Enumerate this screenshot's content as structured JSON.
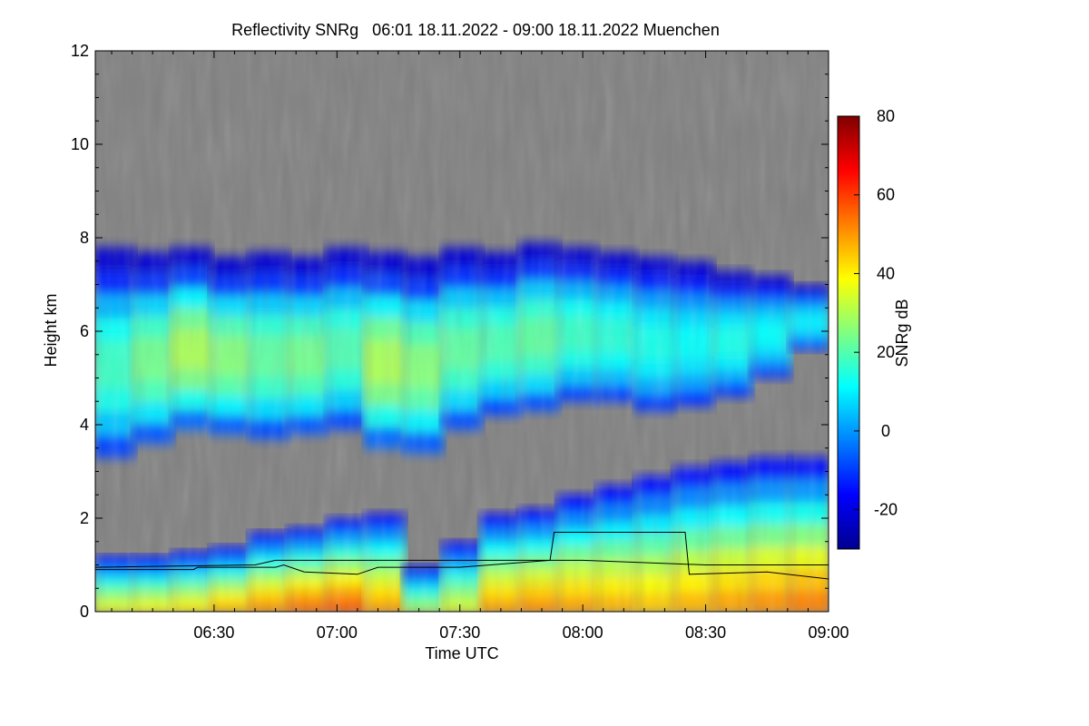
{
  "chart_data": {
    "type": "heatmap",
    "title": "Reflectivity SNRg   06:01 18.11.2022 - 09:00 18.11.2022 Muenchen",
    "xlabel": "Time UTC",
    "ylabel": "Height km",
    "x_range": [
      "06:01",
      "09:00"
    ],
    "x_ticks": [
      "06:30",
      "07:00",
      "07:30",
      "08:00",
      "08:30",
      "09:00"
    ],
    "y_range": [
      0,
      12
    ],
    "y_ticks": [
      "0",
      "2",
      "4",
      "6",
      "8",
      "10",
      "12"
    ],
    "background_color": "#808080",
    "colorbar": {
      "label": "SNRg dB",
      "range": [
        -30,
        80
      ],
      "ticks": [
        "-20",
        "0",
        "20",
        "40",
        "60",
        "80"
      ],
      "colormap": [
        "#00008f",
        "#0000ff",
        "#0080ff",
        "#00ffff",
        "#80ff80",
        "#ffff00",
        "#ff8000",
        "#ff0000",
        "#800000"
      ]
    },
    "upper_layer": {
      "top_km": [
        7.8,
        7.7,
        7.8,
        7.6,
        7.7,
        7.6,
        7.8,
        7.7,
        7.6,
        7.8,
        7.7,
        7.9,
        7.8,
        7.7,
        7.6,
        7.5,
        7.3,
        7.2,
        7.0
      ],
      "bottom_km": [
        3.3,
        3.6,
        3.9,
        3.8,
        3.7,
        3.8,
        3.9,
        3.5,
        3.4,
        3.9,
        4.2,
        4.3,
        4.5,
        4.5,
        4.3,
        4.4,
        4.6,
        5.0,
        5.6
      ],
      "peak_db": [
        18,
        24,
        30,
        26,
        22,
        24,
        20,
        30,
        26,
        22,
        20,
        22,
        18,
        16,
        14,
        12,
        14,
        12,
        10
      ]
    },
    "lower_layer": {
      "top_km": [
        1.2,
        1.2,
        1.3,
        1.4,
        1.7,
        1.8,
        2.0,
        2.1,
        1.0,
        1.5,
        2.1,
        2.2,
        2.5,
        2.7,
        2.9,
        3.1,
        3.2,
        3.3,
        3.3
      ],
      "peak_db": [
        38,
        40,
        42,
        48,
        52,
        56,
        58,
        50,
        30,
        36,
        50,
        52,
        50,
        48,
        46,
        48,
        50,
        52,
        54
      ]
    },
    "overlay_lines": [
      {
        "color": "#000000",
        "points": [
          [
            "06:01",
            0.9
          ],
          [
            "06:25",
            0.9
          ],
          [
            "06:26",
            0.95
          ],
          [
            "06:45",
            0.95
          ],
          [
            "06:47",
            1.0
          ],
          [
            "06:52",
            0.85
          ],
          [
            "07:05",
            0.8
          ],
          [
            "07:10",
            0.95
          ],
          [
            "07:30",
            0.95
          ],
          [
            "07:52",
            1.1
          ],
          [
            "07:53",
            1.7
          ],
          [
            "08:25",
            1.7
          ],
          [
            "08:26",
            0.8
          ],
          [
            "08:45",
            0.85
          ],
          [
            "09:00",
            0.7
          ]
        ]
      },
      {
        "color": "#000000",
        "points": [
          [
            "06:01",
            0.95
          ],
          [
            "06:40",
            1.0
          ],
          [
            "06:45",
            1.1
          ],
          [
            "07:30",
            1.1
          ],
          [
            "08:00",
            1.1
          ],
          [
            "08:30",
            1.0
          ],
          [
            "09:00",
            1.0
          ]
        ]
      }
    ]
  }
}
